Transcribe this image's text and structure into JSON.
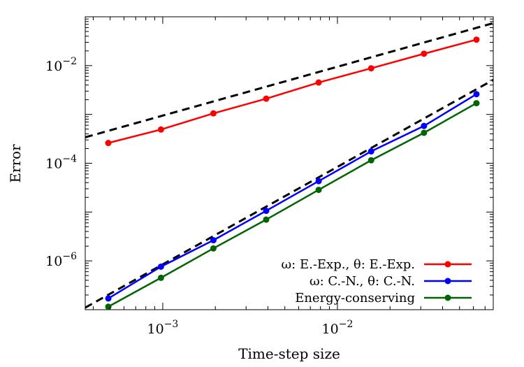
{
  "chart_data": {
    "type": "line",
    "xlabel": "Time-step size",
    "ylabel": "Error",
    "xscale": "log",
    "yscale": "log",
    "xlim": [
      0.00036,
      0.078
    ],
    "ylim": [
      1e-07,
      0.1
    ],
    "x_ticks": [
      {
        "value": 0.001,
        "base": "10",
        "exp": "−3"
      },
      {
        "value": 0.01,
        "base": "10",
        "exp": "−2"
      }
    ],
    "y_ticks": [
      {
        "value": 1e-06,
        "base": "10",
        "exp": "−6"
      },
      {
        "value": 0.0001,
        "base": "10",
        "exp": "−4"
      },
      {
        "value": 0.01,
        "base": "10",
        "exp": "−2"
      }
    ],
    "grid": false,
    "legend_position": "bottom-right",
    "series": [
      {
        "name": "ω: E.-Exp., θ: E.-Exp.",
        "color": "#ff0000",
        "x": [
          0.000488,
          0.000977,
          0.00195,
          0.00391,
          0.00781,
          0.0156,
          0.0313,
          0.0625
        ],
        "y": [
          0.00026,
          0.00049,
          0.00105,
          0.0021,
          0.0045,
          0.0088,
          0.0175,
          0.034
        ]
      },
      {
        "name": "ω: C.-N., θ: C.-N.",
        "color": "#0000ff",
        "x": [
          0.000488,
          0.000977,
          0.00195,
          0.00391,
          0.00781,
          0.0156,
          0.0313,
          0.0625
        ],
        "y": [
          1.7e-07,
          7.6e-07,
          2.65e-06,
          1.06e-05,
          4.3e-05,
          0.000175,
          0.00058,
          0.0026
        ]
      },
      {
        "name": "Energy-conserving",
        "color": "#006400",
        "x": [
          0.000488,
          0.000977,
          0.00195,
          0.00391,
          0.00781,
          0.0156,
          0.0313,
          0.0625
        ],
        "y": [
          1.15e-07,
          4.5e-07,
          1.8e-06,
          7e-06,
          2.85e-05,
          0.000115,
          0.00042,
          0.0017
        ]
      }
    ],
    "reference_lines": [
      {
        "style": "dashed",
        "color": "#000000",
        "x": [
          0.00036,
          0.078
        ],
        "y": [
          0.00034,
          0.074
        ]
      },
      {
        "style": "dashed",
        "color": "#000000",
        "x": [
          0.00036,
          0.078
        ],
        "y": [
          1.1e-07,
          0.0051
        ]
      }
    ]
  }
}
